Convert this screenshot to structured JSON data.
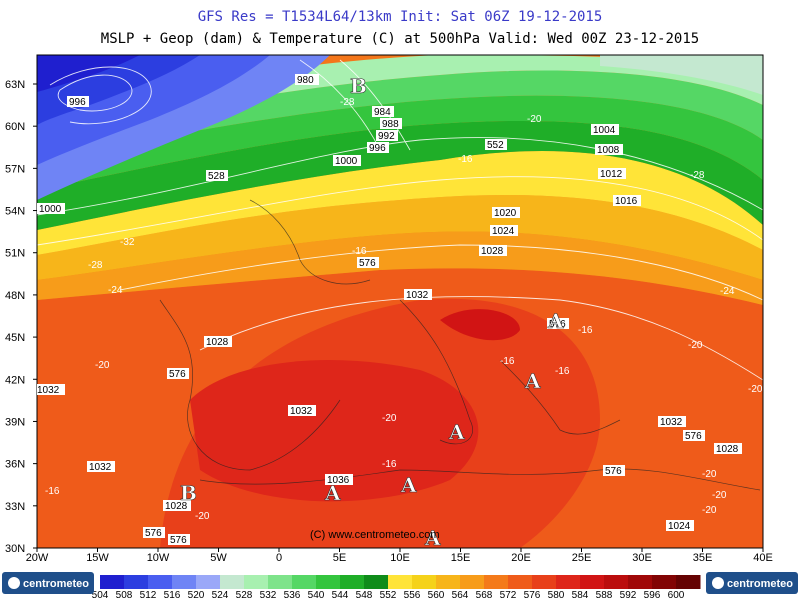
{
  "header": {
    "line1": "GFS Res = T1534L64/13km    Init: Sat 06Z 19-12-2015",
    "line2": "MSLP + Geop (dam) & Temperature (C) at 500hPa  Valid: Wed 00Z 23-12-2015"
  },
  "axes": {
    "lat_labels": [
      "63N",
      "60N",
      "57N",
      "54N",
      "51N",
      "48N",
      "45N",
      "42N",
      "39N",
      "36N",
      "33N",
      "30N"
    ],
    "lon_labels": [
      "20W",
      "15W",
      "10W",
      "5W",
      "0",
      "5E",
      "10E",
      "15E",
      "20E",
      "25E",
      "30E",
      "35E",
      "40E"
    ]
  },
  "watermark": "(C) www.centrometeo.com",
  "centers": {
    "high": "A",
    "low": "B"
  },
  "pressure_labels": [
    "980",
    "984",
    "988",
    "992",
    "996",
    "1000",
    "1004",
    "1008",
    "1012",
    "1016",
    "1020",
    "1024",
    "1028",
    "1032",
    "1036",
    "1028",
    "1028",
    "1032",
    "1032",
    "1032",
    "1024",
    "1000",
    "996",
    "1028",
    "1032"
  ],
  "geop_labels": [
    "552",
    "576",
    "576",
    "576",
    "576",
    "528",
    "576",
    "576",
    "576"
  ],
  "temp_labels": [
    "-28",
    "-24",
    "-20",
    "-16",
    "-32",
    "-28",
    "-28",
    "-24",
    "-20",
    "-16",
    "-16",
    "-16",
    "-16",
    "-20",
    "-20",
    "-16",
    "-20",
    "-16",
    "-20",
    "-20",
    "-20",
    "-20"
  ],
  "colorbar": {
    "values": [
      "504",
      "508",
      "512",
      "516",
      "520",
      "524",
      "528",
      "532",
      "536",
      "540",
      "544",
      "548",
      "552",
      "556",
      "560",
      "564",
      "568",
      "572",
      "576",
      "580",
      "584",
      "588",
      "592",
      "596",
      "600"
    ],
    "colors": [
      "#1f1fcf",
      "#2c3ee0",
      "#4a5ef0",
      "#6f84f5",
      "#9aa8f8",
      "#c4e8d0",
      "#a8f0b0",
      "#7ee38a",
      "#55d765",
      "#34c53e",
      "#1fae28",
      "#0f8c1a",
      "#ffe438",
      "#f5d21a",
      "#f7b51a",
      "#f79c1a",
      "#f47a1a",
      "#ef5b1a",
      "#e8401a",
      "#de261a",
      "#d11414",
      "#bb0d0d",
      "#a00808",
      "#820404",
      "#650202"
    ]
  },
  "logo_left": "centrometeo",
  "logo_right": "centrometeo"
}
